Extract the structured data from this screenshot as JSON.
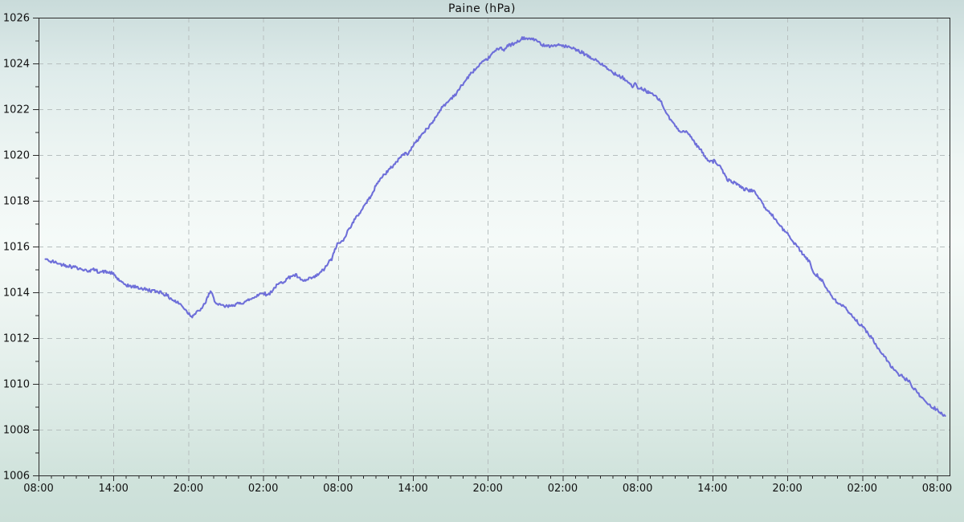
{
  "chart_data": {
    "type": "line",
    "title": "Paine (hPa)",
    "xlabel": "",
    "ylabel": "",
    "ylim": [
      1006,
      1026
    ],
    "y_major_step": 2,
    "y_minor_step": 1,
    "x_span_hours": 73,
    "x_major_hours": [
      0,
      6,
      12,
      18,
      24,
      30,
      36,
      42,
      48,
      54,
      60,
      66,
      72
    ],
    "x_major_labels": [
      "08:00",
      "14:00",
      "20:00",
      "02:00",
      "08:00",
      "14:00",
      "20:00",
      "02:00",
      "08:00",
      "14:00",
      "20:00",
      "02:00",
      "08:00"
    ],
    "x_minor_every_hours": 1,
    "grid": true,
    "legend": "none",
    "colors": {
      "line": "#6e6fd9",
      "grid": "#b7bfbf",
      "axis": "#2b2b2b",
      "text": "#111111"
    },
    "series": [
      {
        "name": "Paine",
        "units": "hPa",
        "points": [
          [
            0.55,
            1015.45
          ],
          [
            1,
            1015.35
          ],
          [
            1.5,
            1015.28
          ],
          [
            2,
            1015.2
          ],
          [
            2.5,
            1015.15
          ],
          [
            3,
            1015.1
          ],
          [
            3.5,
            1015.0
          ],
          [
            4,
            1014.95
          ],
          [
            4.4,
            1015.0
          ],
          [
            4.8,
            1014.9
          ],
          [
            5.3,
            1014.9
          ],
          [
            5.7,
            1014.85
          ],
          [
            6,
            1014.8
          ],
          [
            6.4,
            1014.55
          ],
          [
            6.8,
            1014.35
          ],
          [
            7.3,
            1014.28
          ],
          [
            7.8,
            1014.22
          ],
          [
            8.3,
            1014.15
          ],
          [
            8.8,
            1014.1
          ],
          [
            9.3,
            1014.05
          ],
          [
            9.8,
            1014.0
          ],
          [
            10.3,
            1013.85
          ],
          [
            10.8,
            1013.65
          ],
          [
            11.3,
            1013.5
          ],
          [
            11.7,
            1013.3
          ],
          [
            12,
            1013.1
          ],
          [
            12.25,
            1012.95
          ],
          [
            12.5,
            1013.05
          ],
          [
            12.8,
            1013.15
          ],
          [
            13.1,
            1013.3
          ],
          [
            13.4,
            1013.6
          ],
          [
            13.65,
            1013.95
          ],
          [
            13.85,
            1014.0
          ],
          [
            14.1,
            1013.65
          ],
          [
            14.4,
            1013.45
          ],
          [
            14.8,
            1013.4
          ],
          [
            15.2,
            1013.38
          ],
          [
            15.6,
            1013.45
          ],
          [
            16,
            1013.5
          ],
          [
            16.4,
            1013.55
          ],
          [
            16.8,
            1013.65
          ],
          [
            17.2,
            1013.75
          ],
          [
            17.6,
            1013.9
          ],
          [
            18,
            1014.0
          ],
          [
            18.3,
            1013.85
          ],
          [
            18.6,
            1014.0
          ],
          [
            19,
            1014.25
          ],
          [
            19.4,
            1014.4
          ],
          [
            19.8,
            1014.55
          ],
          [
            20.2,
            1014.7
          ],
          [
            20.6,
            1014.75
          ],
          [
            21,
            1014.55
          ],
          [
            21.4,
            1014.5
          ],
          [
            21.8,
            1014.6
          ],
          [
            22.2,
            1014.7
          ],
          [
            22.6,
            1014.85
          ],
          [
            23,
            1015.1
          ],
          [
            23.3,
            1015.35
          ],
          [
            23.55,
            1015.5
          ],
          [
            23.75,
            1015.9
          ],
          [
            24,
            1016.15
          ],
          [
            24.3,
            1016.2
          ],
          [
            24.55,
            1016.45
          ],
          [
            24.9,
            1016.8
          ],
          [
            25.3,
            1017.15
          ],
          [
            25.7,
            1017.45
          ],
          [
            26.1,
            1017.8
          ],
          [
            26.5,
            1018.1
          ],
          [
            26.9,
            1018.5
          ],
          [
            27.3,
            1018.9
          ],
          [
            27.7,
            1019.15
          ],
          [
            28.1,
            1019.35
          ],
          [
            28.5,
            1019.6
          ],
          [
            28.9,
            1019.85
          ],
          [
            29.3,
            1020.05
          ],
          [
            29.7,
            1020.1
          ],
          [
            30.1,
            1020.5
          ],
          [
            30.5,
            1020.75
          ],
          [
            30.9,
            1021.0
          ],
          [
            31.3,
            1021.25
          ],
          [
            31.7,
            1021.55
          ],
          [
            32.1,
            1021.9
          ],
          [
            32.5,
            1022.15
          ],
          [
            33,
            1022.45
          ],
          [
            33.5,
            1022.7
          ],
          [
            34,
            1023.1
          ],
          [
            34.5,
            1023.45
          ],
          [
            34.9,
            1023.7
          ],
          [
            35.5,
            1024.0
          ],
          [
            36,
            1024.2
          ],
          [
            36.5,
            1024.5
          ],
          [
            37,
            1024.7
          ],
          [
            37.3,
            1024.6
          ],
          [
            37.7,
            1024.8
          ],
          [
            38.1,
            1024.85
          ],
          [
            38.6,
            1025.0
          ],
          [
            38.9,
            1025.15
          ],
          [
            39.2,
            1025.05
          ],
          [
            39.5,
            1025.1
          ],
          [
            39.85,
            1025.0
          ],
          [
            40.2,
            1024.85
          ],
          [
            40.6,
            1024.8
          ],
          [
            41.1,
            1024.78
          ],
          [
            41.6,
            1024.8
          ],
          [
            42.1,
            1024.78
          ],
          [
            42.5,
            1024.7
          ],
          [
            43,
            1024.6
          ],
          [
            43.4,
            1024.5
          ],
          [
            43.8,
            1024.4
          ],
          [
            44.2,
            1024.25
          ],
          [
            44.7,
            1024.15
          ],
          [
            45.1,
            1023.95
          ],
          [
            45.5,
            1023.8
          ],
          [
            46,
            1023.6
          ],
          [
            46.4,
            1023.5
          ],
          [
            46.8,
            1023.4
          ],
          [
            47.2,
            1023.2
          ],
          [
            47.6,
            1023.0
          ],
          [
            47.8,
            1023.1
          ],
          [
            48.1,
            1022.9
          ],
          [
            48.5,
            1022.85
          ],
          [
            48.9,
            1022.75
          ],
          [
            49.3,
            1022.6
          ],
          [
            49.6,
            1022.5
          ],
          [
            49.9,
            1022.3
          ],
          [
            50.2,
            1021.95
          ],
          [
            50.5,
            1021.65
          ],
          [
            50.8,
            1021.45
          ],
          [
            51.1,
            1021.2
          ],
          [
            51.5,
            1021.05
          ],
          [
            51.9,
            1021.0
          ],
          [
            52.3,
            1020.8
          ],
          [
            52.7,
            1020.45
          ],
          [
            53.1,
            1020.2
          ],
          [
            53.4,
            1019.9
          ],
          [
            53.7,
            1019.78
          ],
          [
            54.2,
            1019.72
          ],
          [
            54.5,
            1019.55
          ],
          [
            54.8,
            1019.3
          ],
          [
            55.1,
            1019.0
          ],
          [
            55.4,
            1018.85
          ],
          [
            55.8,
            1018.8
          ],
          [
            56.2,
            1018.65
          ],
          [
            56.6,
            1018.5
          ],
          [
            57,
            1018.45
          ],
          [
            57.4,
            1018.38
          ],
          [
            57.7,
            1018.15
          ],
          [
            58,
            1017.9
          ],
          [
            58.3,
            1017.6
          ],
          [
            58.6,
            1017.5
          ],
          [
            58.9,
            1017.3
          ],
          [
            59.2,
            1017.05
          ],
          [
            59.5,
            1016.9
          ],
          [
            59.8,
            1016.65
          ],
          [
            60.1,
            1016.5
          ],
          [
            60.4,
            1016.25
          ],
          [
            60.7,
            1016.05
          ],
          [
            61,
            1015.85
          ],
          [
            61.4,
            1015.55
          ],
          [
            61.8,
            1015.3
          ],
          [
            62.1,
            1014.85
          ],
          [
            62.4,
            1014.75
          ],
          [
            62.8,
            1014.5
          ],
          [
            63.1,
            1014.2
          ],
          [
            63.4,
            1013.95
          ],
          [
            63.7,
            1013.7
          ],
          [
            64,
            1013.55
          ],
          [
            64.3,
            1013.48
          ],
          [
            64.6,
            1013.35
          ],
          [
            64.9,
            1013.1
          ],
          [
            65.2,
            1013.0
          ],
          [
            65.5,
            1012.8
          ],
          [
            65.8,
            1012.6
          ],
          [
            66.1,
            1012.45
          ],
          [
            66.4,
            1012.25
          ],
          [
            66.7,
            1012.05
          ],
          [
            67,
            1011.8
          ],
          [
            67.3,
            1011.5
          ],
          [
            67.6,
            1011.3
          ],
          [
            67.9,
            1011.1
          ],
          [
            68.2,
            1010.85
          ],
          [
            68.5,
            1010.65
          ],
          [
            68.8,
            1010.5
          ],
          [
            69.1,
            1010.35
          ],
          [
            69.4,
            1010.25
          ],
          [
            69.7,
            1010.15
          ],
          [
            70,
            1009.9
          ],
          [
            70.3,
            1009.7
          ],
          [
            70.6,
            1009.5
          ],
          [
            70.9,
            1009.35
          ],
          [
            71.2,
            1009.15
          ],
          [
            71.5,
            1009.0
          ],
          [
            71.8,
            1008.95
          ],
          [
            72.1,
            1008.85
          ],
          [
            72.35,
            1008.7
          ],
          [
            72.65,
            1008.6
          ]
        ]
      }
    ]
  }
}
